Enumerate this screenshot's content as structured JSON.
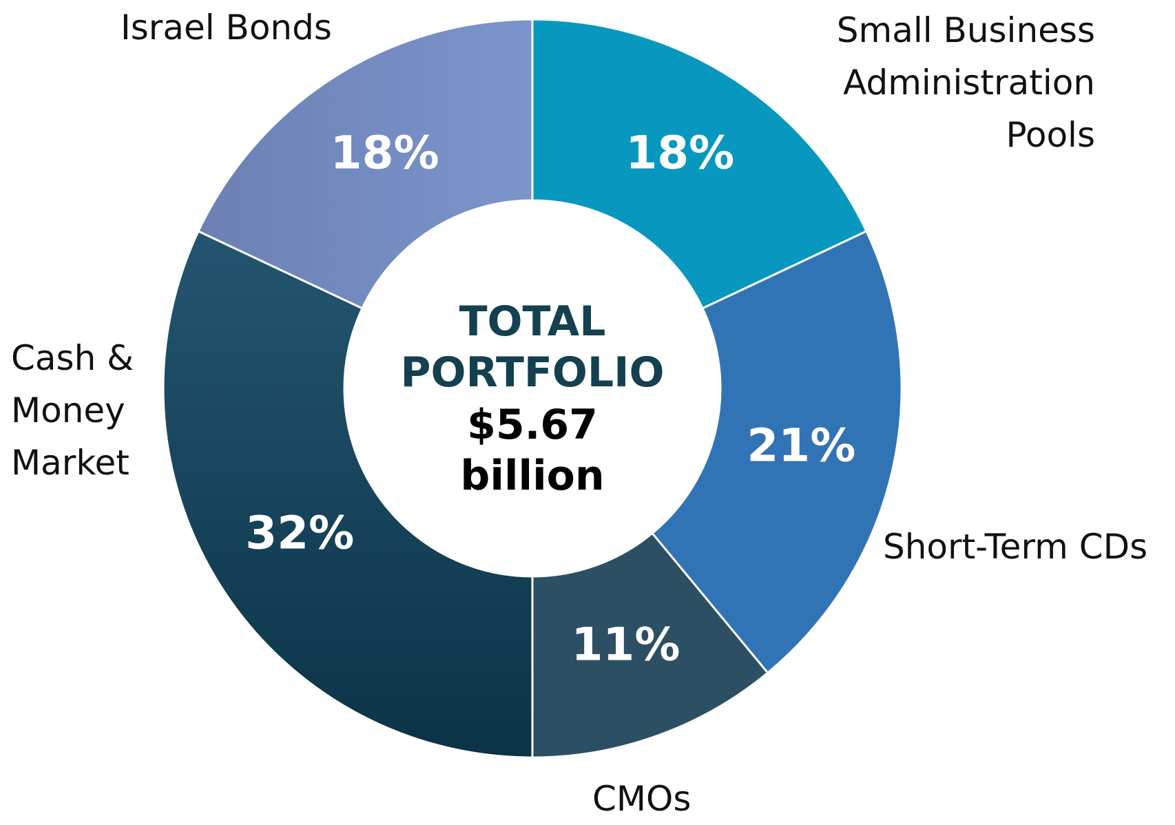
{
  "chart_data": {
    "type": "donut",
    "categories": [
      "Small Business Administration Pools",
      "Short-Term CDs",
      "CMOs",
      "Cash & Money Market",
      "Israel Bonds"
    ],
    "values": [
      18,
      21,
      11,
      32,
      18
    ],
    "value_labels": [
      "18%",
      "21%",
      "11%",
      "32%",
      "18%"
    ],
    "colors": [
      "#0898bf",
      "#3174b6",
      "#2c4f63",
      "#1c4a62",
      "#7a91c8"
    ],
    "center_title": "TOTAL PORTFOLIO",
    "center_value": "$5.67 billion"
  }
}
